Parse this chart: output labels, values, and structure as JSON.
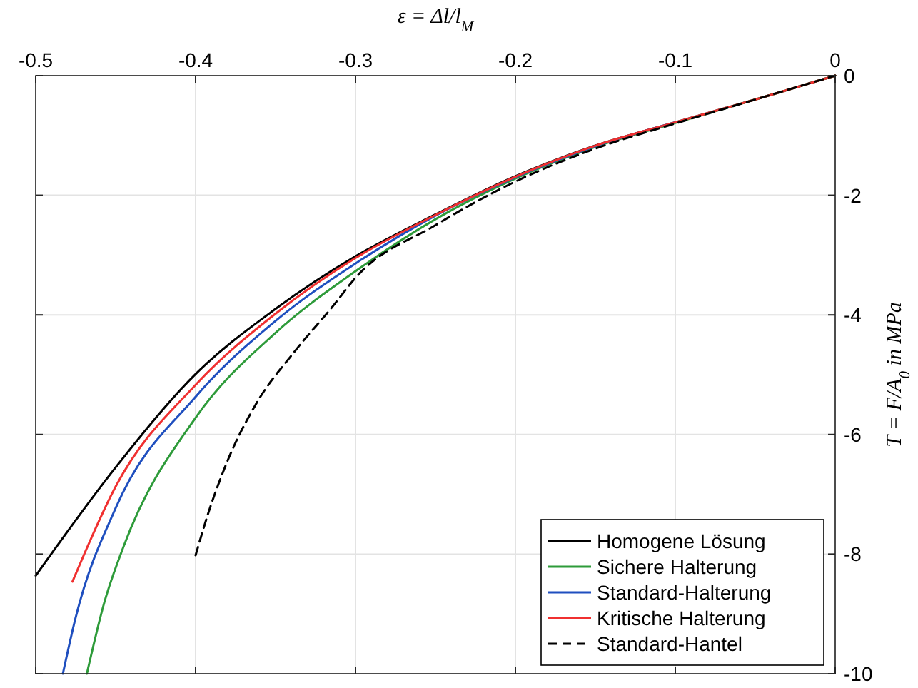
{
  "chart_data": {
    "type": "line",
    "xlabel": "ε = Δl/l$_{M}$",
    "ylabel": "T = F/A$_{0}$ in MPa",
    "xlim": [
      -0.5,
      0
    ],
    "xticks": [
      -0.5,
      -0.4,
      -0.3,
      -0.2,
      -0.1,
      0
    ],
    "ylim": [
      -10,
      0
    ],
    "yticks": [
      -10,
      -8,
      -6,
      -4,
      -2,
      0
    ],
    "grid": true,
    "legend": "bottom right",
    "series": [
      {
        "name": "Homogene Lösung",
        "color": "#000000",
        "line_style": "solid",
        "x": [
          -0.5,
          -0.45,
          -0.4,
          -0.35,
          -0.3,
          -0.25,
          -0.2,
          -0.15,
          -0.1,
          -0.05,
          0
        ],
        "values": [
          -8.36,
          -6.55,
          -4.99,
          -3.9,
          -3.02,
          -2.32,
          -1.68,
          -1.17,
          -0.78,
          -0.4,
          0
        ]
      },
      {
        "name": "Sichere Halterung",
        "color": "#2e9b3a",
        "line_style": "solid",
        "x": [
          -0.468,
          -0.457,
          -0.445,
          -0.4,
          -0.35,
          -0.3,
          -0.25,
          -0.2,
          -0.15,
          -0.1,
          -0.05,
          0
        ],
        "values": [
          -10,
          -8.8,
          -7.87,
          -5.72,
          -4.3,
          -3.27,
          -2.4,
          -1.72,
          -1.19,
          -0.79,
          -0.4,
          0
        ]
      },
      {
        "name": "Standard-Halterung",
        "color": "#1f4fbf",
        "line_style": "solid",
        "x": [
          -0.483,
          -0.475,
          -0.45,
          -0.4,
          -0.35,
          -0.3,
          -0.25,
          -0.2,
          -0.15,
          -0.1
        ],
        "values": [
          -10,
          -9.06,
          -7.23,
          -5.37,
          -4.1,
          -3.14,
          -2.34,
          -1.7,
          -1.18,
          -0.78
        ]
      },
      {
        "name": "Kritische Halterung",
        "color": "#f03030",
        "line_style": "solid",
        "x": [
          -0.477,
          -0.45,
          -0.4,
          -0.35,
          -0.3,
          -0.25,
          -0.2,
          -0.15,
          -0.1,
          -0.05,
          0
        ],
        "values": [
          -8.46,
          -6.87,
          -5.17,
          -3.98,
          -3.05,
          -2.33,
          -1.69,
          -1.17,
          -0.78,
          -0.4,
          0
        ]
      },
      {
        "name": "Standard-Hantel",
        "color": "#000000",
        "line_style": "dashed",
        "x": [
          -0.4,
          -0.392,
          -0.38,
          -0.362,
          -0.338,
          -0.314,
          -0.3,
          -0.25,
          -0.2,
          -0.15,
          -0.1,
          -0.05,
          0
        ],
        "values": [
          -8.02,
          -7.31,
          -6.44,
          -5.48,
          -4.61,
          -3.85,
          -3.38,
          -2.5,
          -1.77,
          -1.22,
          -0.8,
          -0.4,
          0
        ]
      }
    ]
  }
}
